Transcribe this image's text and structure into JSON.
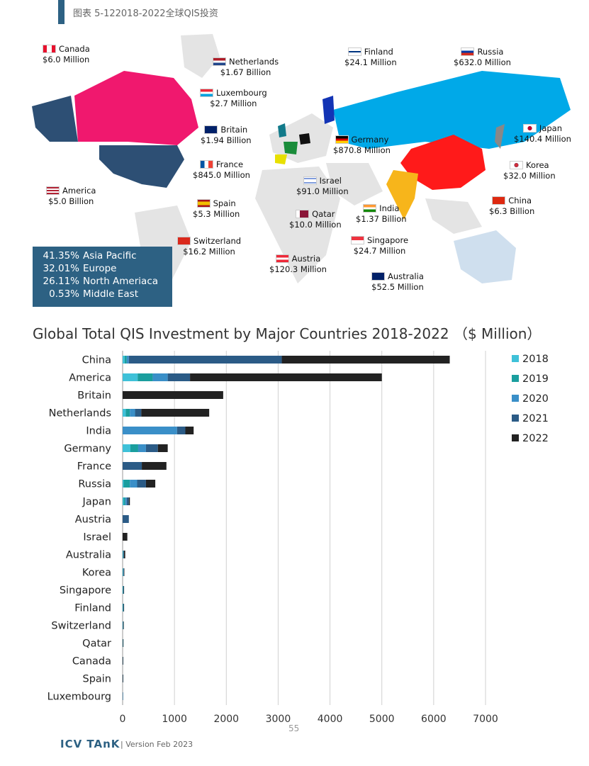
{
  "header": {
    "title": "图表 5-122018-2022全球QIS投资"
  },
  "map": {
    "labels": [
      {
        "id": "canada",
        "name": "Canada",
        "amount": "$6.0 Million",
        "flag": [
          "#e8112d",
          "#ffffff",
          "#e8112d"
        ]
      },
      {
        "id": "netherlands",
        "name": "Netherlands",
        "amount": "$1.67 Billion",
        "flag": [
          "#ae1c28",
          "#ffffff",
          "#21468b"
        ]
      },
      {
        "id": "luxembourg",
        "name": "Luxembourg",
        "amount": "$2.7 Million",
        "flag": [
          "#ed2939",
          "#ffffff",
          "#00a1de"
        ]
      },
      {
        "id": "britain",
        "name": "Britain",
        "amount": "$1.94 Billion",
        "flag": [
          "#012169",
          "#ffffff",
          "#c8102e"
        ]
      },
      {
        "id": "france",
        "name": "France",
        "amount": "$845.0 Million",
        "flag": [
          "#0055a4",
          "#ffffff",
          "#ef4135"
        ]
      },
      {
        "id": "spain",
        "name": "Spain",
        "amount": "$5.3 Million",
        "flag": [
          "#aa151b",
          "#f1bf00",
          "#aa151b"
        ]
      },
      {
        "id": "switzerland",
        "name": "Switzerland",
        "amount": "$16.2 Million",
        "flag": [
          "#da291c",
          "#ffffff",
          "#da291c"
        ]
      },
      {
        "id": "america",
        "name": "America",
        "amount": "$5.0 Billion",
        "flag": [
          "#b22234",
          "#ffffff",
          "#3c3b6e"
        ]
      },
      {
        "id": "finland",
        "name": "Finland",
        "amount": "$24.1 Million",
        "flag": [
          "#ffffff",
          "#003580",
          "#ffffff"
        ]
      },
      {
        "id": "russia",
        "name": "Russia",
        "amount": "$632.0 Million",
        "flag": [
          "#ffffff",
          "#0039a6",
          "#d52b1e"
        ]
      },
      {
        "id": "japan",
        "name": "Japan",
        "amount": "$140.4 Million",
        "flag": [
          "#ffffff",
          "#bc002d",
          "#ffffff"
        ]
      },
      {
        "id": "germany",
        "name": "Germany",
        "amount": "$870.8 Million",
        "flag": [
          "#000000",
          "#dd0000",
          "#ffce00"
        ]
      },
      {
        "id": "korea",
        "name": "Korea",
        "amount": "$32.0 Million",
        "flag": [
          "#ffffff",
          "#cd2e3a",
          "#0047a0"
        ]
      },
      {
        "id": "israel",
        "name": "Israel",
        "amount": "$91.0 Million",
        "flag": [
          "#ffffff",
          "#0038b8",
          "#ffffff"
        ]
      },
      {
        "id": "china",
        "name": "China",
        "amount": "$6.3 Billion",
        "flag": [
          "#de2910",
          "#de2910",
          "#de2910"
        ]
      },
      {
        "id": "india",
        "name": "India",
        "amount": "$1.37 Billion",
        "flag": [
          "#ff9933",
          "#ffffff",
          "#138808"
        ]
      },
      {
        "id": "qatar",
        "name": "Qatar",
        "amount": "$10.0 Million",
        "flag": [
          "#ffffff",
          "#8a1538",
          "#8a1538"
        ]
      },
      {
        "id": "singapore",
        "name": "Singapore",
        "amount": "$24.7 Million",
        "flag": [
          "#ef3340",
          "#ffffff",
          "#ffffff"
        ]
      },
      {
        "id": "austria",
        "name": "Austria",
        "amount": "$120.3 Million",
        "flag": [
          "#ed2939",
          "#ffffff",
          "#ed2939"
        ]
      },
      {
        "id": "australia",
        "name": "Australia",
        "amount": "$52.5 Million",
        "flag": [
          "#012169",
          "#012169",
          "#012169"
        ]
      }
    ],
    "regions": [
      {
        "pct": "41.35%",
        "name": "Asia Pacific"
      },
      {
        "pct": "32.01%",
        "name": "Europe"
      },
      {
        "pct": "26.11%",
        "name": "North Ameriaca"
      },
      {
        "pct": "0.53%",
        "name": "Middle East"
      }
    ],
    "colors": {
      "china": "#ff1a1a",
      "russia": "#00a9e8",
      "canada": "#f0186e",
      "usa": "#2d4f74",
      "india": "#f7b51b",
      "australia": "#cfdfee",
      "land": "#e4e4e4"
    }
  },
  "chart_data": {
    "type": "bar",
    "orientation": "horizontal",
    "stacked": true,
    "title": "Global Total QIS Investment by Major Countries 2018-2022 （$ Million）",
    "xlabel": "",
    "ylabel": "",
    "xlim": [
      0,
      7000
    ],
    "xticks": [
      0,
      1000,
      2000,
      3000,
      4000,
      5000,
      6000,
      7000
    ],
    "grid": true,
    "legend": "right",
    "categories": [
      "China",
      "America",
      "Britain",
      "Netherlands",
      "India",
      "Germany",
      "France",
      "Russia",
      "Japan",
      "Austria",
      "Israel",
      "Australia",
      "Korea",
      "Singapore",
      "Finland",
      "Switzerland",
      "Qatar",
      "Canada",
      "Spain",
      "Luxembourg"
    ],
    "series": [
      {
        "name": "2018",
        "color": "#3fc1d8",
        "values": [
          40,
          290,
          0,
          60,
          0,
          150,
          0,
          20,
          20,
          0,
          0,
          5,
          5,
          5,
          5,
          3,
          2,
          1,
          1,
          1
        ]
      },
      {
        "name": "2019",
        "color": "#1a9e9e",
        "values": [
          40,
          290,
          0,
          80,
          0,
          150,
          0,
          120,
          30,
          0,
          0,
          5,
          5,
          5,
          5,
          3,
          2,
          1,
          1,
          0
        ]
      },
      {
        "name": "2020",
        "color": "#3a8fc8",
        "values": [
          40,
          290,
          0,
          100,
          1050,
          150,
          0,
          140,
          30,
          0,
          0,
          5,
          5,
          5,
          5,
          3,
          2,
          1,
          1,
          0
        ]
      },
      {
        "name": "2021",
        "color": "#2b5b86",
        "values": [
          2950,
          430,
          0,
          120,
          160,
          230,
          370,
          170,
          40,
          120,
          0,
          10,
          10,
          5,
          5,
          5,
          2,
          1,
          1,
          1
        ]
      },
      {
        "name": "2022",
        "color": "#222222",
        "values": [
          3240,
          3700,
          1940,
          1310,
          160,
          190,
          475,
          180,
          20,
          0,
          91,
          25,
          7,
          5,
          4,
          2,
          2,
          2,
          1,
          0
        ]
      }
    ]
  },
  "footer": {
    "page": "55",
    "logo": "ICV TAnK",
    "version": "|  Version Feb 2023"
  }
}
